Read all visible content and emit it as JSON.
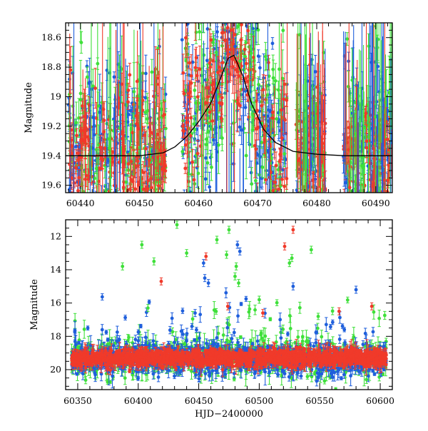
{
  "colors": {
    "blue": "#1f5fdc",
    "green": "#3fe03a",
    "red": "#f03a2a",
    "model": "#000000",
    "axes": "#000000"
  },
  "chart_data": [
    {
      "type": "scatter",
      "panel": "top",
      "xlabel": "",
      "ylabel": "Magnitude",
      "xlim": [
        60437.5,
        60492.8
      ],
      "ylim": [
        19.65,
        18.5
      ],
      "y_inverted": true,
      "xticks": [
        60440,
        60450,
        60460,
        60470,
        60480,
        60490
      ],
      "xtick_labels": [
        "60440",
        "60450",
        "60460",
        "60470",
        "60480",
        "60490"
      ],
      "yticks": [
        18.6,
        18.8,
        19.0,
        19.2,
        19.4,
        19.6
      ],
      "ytick_labels": [
        "18.6",
        "18.8",
        "19",
        "19.2",
        "19.4",
        "19.6"
      ],
      "series": [
        {
          "color": "blue",
          "baseline": 19.32,
          "spread": 0.28,
          "n": 520,
          "errbar": 0.08
        },
        {
          "color": "green",
          "baseline": 19.28,
          "spread": 0.32,
          "n": 420,
          "errbar": 0.1
        },
        {
          "color": "red",
          "baseline": 19.38,
          "spread": 0.22,
          "n": 460,
          "errbar": 0.08
        }
      ],
      "observing_seasons": [
        [
          60438.0,
          60454.5
        ],
        [
          60457.2,
          60475.0
        ],
        [
          60476.5,
          60481.5
        ],
        [
          60484.5,
          60492.8
        ]
      ],
      "model_curve": {
        "color": "model",
        "points": [
          [
            60437.5,
            19.4
          ],
          [
            60445,
            19.4
          ],
          [
            60450,
            19.4
          ],
          [
            60454,
            19.38
          ],
          [
            60456,
            19.34
          ],
          [
            60458,
            19.27
          ],
          [
            60460,
            19.17
          ],
          [
            60462,
            19.05
          ],
          [
            60463.5,
            18.9
          ],
          [
            60465,
            18.74
          ],
          [
            60466,
            18.72
          ],
          [
            60467.5,
            18.86
          ],
          [
            60469,
            19.05
          ],
          [
            60471,
            19.22
          ],
          [
            60473,
            19.31
          ],
          [
            60476,
            19.37
          ],
          [
            60480,
            19.39
          ],
          [
            60485,
            19.4
          ],
          [
            60492.8,
            19.4
          ]
        ]
      },
      "bright_excursions": [
        {
          "x": 60464.5,
          "y": 18.62,
          "color": "red"
        },
        {
          "x": 60465.5,
          "y": 18.55,
          "color": "red"
        },
        {
          "x": 60463.0,
          "y": 18.7,
          "color": "green"
        },
        {
          "x": 60466.2,
          "y": 18.66,
          "color": "blue"
        },
        {
          "x": 60462.0,
          "y": 18.8,
          "color": "red"
        },
        {
          "x": 60467.0,
          "y": 18.76,
          "color": "green"
        }
      ]
    },
    {
      "type": "scatter",
      "panel": "bottom",
      "xlabel": "HJD−2400000",
      "ylabel": "Magnitude",
      "xlim": [
        60340,
        60610
      ],
      "ylim": [
        21.2,
        11.0
      ],
      "y_inverted": true,
      "xticks": [
        60350,
        60400,
        60450,
        60500,
        60550,
        60600
      ],
      "xtick_labels": [
        "60350",
        "60400",
        "60450",
        "60500",
        "60550",
        "60600"
      ],
      "yticks": [
        12,
        14,
        16,
        18,
        20
      ],
      "ytick_labels": [
        "12",
        "14",
        "16",
        "18",
        "20"
      ],
      "series": [
        {
          "color": "blue",
          "baseline": 19.4,
          "spread": 0.8,
          "n": 900,
          "errbar": 0.25
        },
        {
          "color": "green",
          "baseline": 19.3,
          "spread": 0.9,
          "n": 700,
          "errbar": 0.3
        },
        {
          "color": "red",
          "baseline": 19.3,
          "spread": 0.4,
          "n": 1400,
          "errbar": 0.2
        }
      ],
      "outliers": [
        {
          "x": 60432,
          "y": 11.3,
          "color": "green"
        },
        {
          "x": 60475,
          "y": 11.6,
          "color": "green"
        },
        {
          "x": 60528,
          "y": 11.6,
          "color": "red"
        },
        {
          "x": 60465,
          "y": 12.2,
          "color": "green"
        },
        {
          "x": 60403,
          "y": 12.5,
          "color": "green"
        },
        {
          "x": 60482,
          "y": 12.5,
          "color": "blue"
        },
        {
          "x": 60521,
          "y": 12.6,
          "color": "red"
        },
        {
          "x": 60543,
          "y": 12.8,
          "color": "green"
        },
        {
          "x": 60440,
          "y": 13.0,
          "color": "green"
        },
        {
          "x": 60484,
          "y": 12.9,
          "color": "blue"
        },
        {
          "x": 60456,
          "y": 13.2,
          "color": "red"
        },
        {
          "x": 60473,
          "y": 13.1,
          "color": "green"
        },
        {
          "x": 60413,
          "y": 13.5,
          "color": "green"
        },
        {
          "x": 60527,
          "y": 13.3,
          "color": "green"
        },
        {
          "x": 60454,
          "y": 13.6,
          "color": "blue"
        },
        {
          "x": 60525,
          "y": 13.6,
          "color": "green"
        },
        {
          "x": 60387,
          "y": 13.8,
          "color": "green"
        },
        {
          "x": 60481,
          "y": 13.8,
          "color": "green"
        },
        {
          "x": 60455,
          "y": 14.5,
          "color": "blue"
        },
        {
          "x": 60480,
          "y": 14.4,
          "color": "green"
        },
        {
          "x": 60419,
          "y": 14.7,
          "color": "red"
        },
        {
          "x": 60458,
          "y": 14.8,
          "color": "blue"
        },
        {
          "x": 60483,
          "y": 14.8,
          "color": "green"
        },
        {
          "x": 60528,
          "y": 15.0,
          "color": "blue"
        },
        {
          "x": 60580,
          "y": 15.2,
          "color": "blue"
        },
        {
          "x": 60500,
          "y": 15.8,
          "color": "green"
        },
        {
          "x": 60474,
          "y": 16.2,
          "color": "red"
        },
        {
          "x": 60593,
          "y": 16.2,
          "color": "red"
        },
        {
          "x": 60408,
          "y": 16.3,
          "color": "green"
        },
        {
          "x": 60447,
          "y": 16.6,
          "color": "blue"
        },
        {
          "x": 60503,
          "y": 16.6,
          "color": "red"
        },
        {
          "x": 60566,
          "y": 16.5,
          "color": "red"
        }
      ]
    }
  ]
}
